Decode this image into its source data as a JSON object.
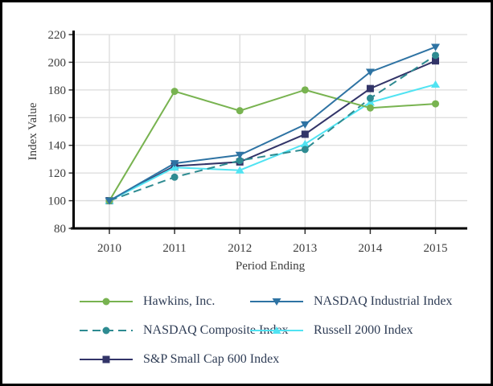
{
  "chart_data": {
    "type": "line",
    "title": "",
    "xlabel": "Period Ending",
    "ylabel": "Index Value",
    "x_labels": [
      "2010",
      "2011",
      "2012",
      "2013",
      "2014",
      "2015"
    ],
    "ylim": [
      80,
      220
    ],
    "yticks": [
      80,
      100,
      120,
      140,
      160,
      180,
      200,
      220
    ],
    "grid": true,
    "legend_position": "bottom",
    "series": [
      {
        "name": "Hawkins, Inc.",
        "color": "#78B350",
        "marker": "circle",
        "dash": "solid",
        "values": [
          100,
          179,
          165,
          180,
          167,
          170
        ]
      },
      {
        "name": "NASDAQ Industrial Index",
        "color": "#2E73A3",
        "marker": "triangle-down",
        "dash": "solid",
        "values": [
          100,
          127,
          133,
          155,
          193,
          211
        ]
      },
      {
        "name": "NASDAQ Composite Index",
        "color": "#2E8B91",
        "marker": "circle",
        "dash": "dashed",
        "values": [
          100,
          117,
          129,
          137,
          174,
          205
        ]
      },
      {
        "name": "Russell 2000 Index",
        "color": "#50E3F2",
        "marker": "triangle-up",
        "dash": "solid",
        "values": [
          100,
          124,
          122,
          141,
          171,
          184
        ]
      },
      {
        "name": "S&P Small Cap 600 Index",
        "color": "#323468",
        "marker": "square",
        "dash": "solid",
        "values": [
          100,
          125,
          128,
          148,
          181,
          201
        ]
      }
    ]
  },
  "colors": {
    "background": "#FFFFFF",
    "frame_border": "#000000",
    "grid": "#DCDCDC",
    "axis_line": "#000000",
    "tick": "#333333",
    "tick_text": "#3C3C3C",
    "legend_text": "#2E3C55"
  }
}
